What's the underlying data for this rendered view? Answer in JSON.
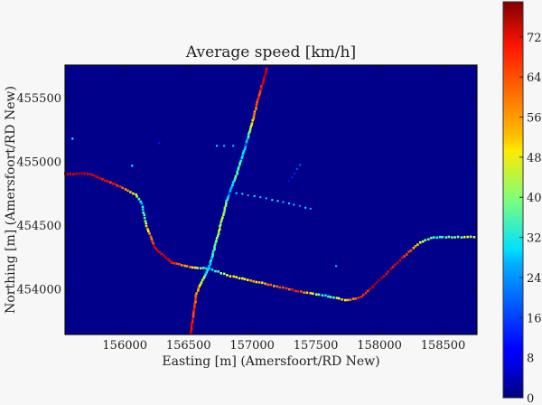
{
  "chart_data": {
    "type": "scatter",
    "title": "Average speed [km/h]",
    "xlabel": "Easting [m] (Amersfoort/RD New)",
    "ylabel": "Northing [m] (Amersfoort/RD New)",
    "xlim": [
      155530,
      158766
    ],
    "ylim": [
      453640,
      455755
    ],
    "xticks": [
      156000,
      156500,
      157000,
      157500,
      158000,
      158500
    ],
    "yticks": [
      454000,
      454500,
      455000,
      455500
    ],
    "grid": false,
    "background_color": "#00008b",
    "colorbar": {
      "label": "",
      "range": [
        0,
        79
      ],
      "ticks": [
        0,
        8,
        16,
        24,
        32,
        40,
        48,
        56,
        64,
        72
      ],
      "colormap": "jet"
    },
    "roads": [
      {
        "name": "north-south-road",
        "spacing": 18,
        "vertices": [
          [
            156518,
            453652,
            72
          ],
          [
            156560,
            453950,
            60
          ],
          [
            156600,
            454050,
            48
          ],
          [
            156660,
            454156,
            24
          ],
          [
            156740,
            454450,
            46
          ],
          [
            156790,
            454650,
            40
          ],
          [
            156820,
            454750,
            18
          ],
          [
            156880,
            454900,
            38
          ],
          [
            156930,
            455060,
            30
          ],
          [
            156950,
            455130,
            20
          ],
          [
            157000,
            455300,
            52
          ],
          [
            157050,
            455500,
            66
          ],
          [
            157121,
            455745,
            74
          ]
        ]
      },
      {
        "name": "west-curve-road",
        "spacing": 22,
        "vertices": [
          [
            155532,
            454901,
            77
          ],
          [
            155730,
            454901,
            72
          ],
          [
            155943,
            454809,
            66
          ],
          [
            156085,
            454738,
            52
          ],
          [
            156135,
            454667,
            26
          ],
          [
            156170,
            454489,
            48
          ],
          [
            156241,
            454312,
            70
          ],
          [
            156369,
            454206,
            70
          ],
          [
            156511,
            454170,
            55
          ],
          [
            156660,
            454156,
            26
          ]
        ]
      },
      {
        "name": "south-east-road",
        "spacing": 24,
        "vertices": [
          [
            156660,
            454156,
            26
          ],
          [
            156830,
            454099,
            48
          ],
          [
            157149,
            454028,
            58
          ],
          [
            157362,
            453979,
            66
          ],
          [
            157574,
            453943,
            32
          ],
          [
            157752,
            453908,
            55
          ],
          [
            157858,
            453936,
            66
          ],
          [
            158000,
            454064,
            74
          ],
          [
            158177,
            454241,
            70
          ],
          [
            158319,
            454362,
            50
          ],
          [
            158426,
            454404,
            32
          ],
          [
            158766,
            454404,
            48
          ]
        ]
      },
      {
        "name": "sparse-east-west-road",
        "spacing": 45,
        "vertices": [
          [
            156879,
            454752,
            26
          ],
          [
            157200,
            454690,
            30
          ],
          [
            157504,
            454617,
            24
          ]
        ]
      },
      {
        "name": "sparse-short-road",
        "spacing": 40,
        "vertices": [
          [
            157291,
            454844,
            14
          ],
          [
            157397,
            455000,
            16
          ]
        ]
      }
    ],
    "isolated_points": [
      [
        155589,
        455177,
        32
      ],
      [
        156057,
        454965,
        30
      ],
      [
        156270,
        455142,
        12
      ],
      [
        156723,
        455121,
        26
      ],
      [
        156780,
        455121,
        24
      ],
      [
        156851,
        455121,
        24
      ],
      [
        157660,
        454177,
        24
      ]
    ]
  }
}
